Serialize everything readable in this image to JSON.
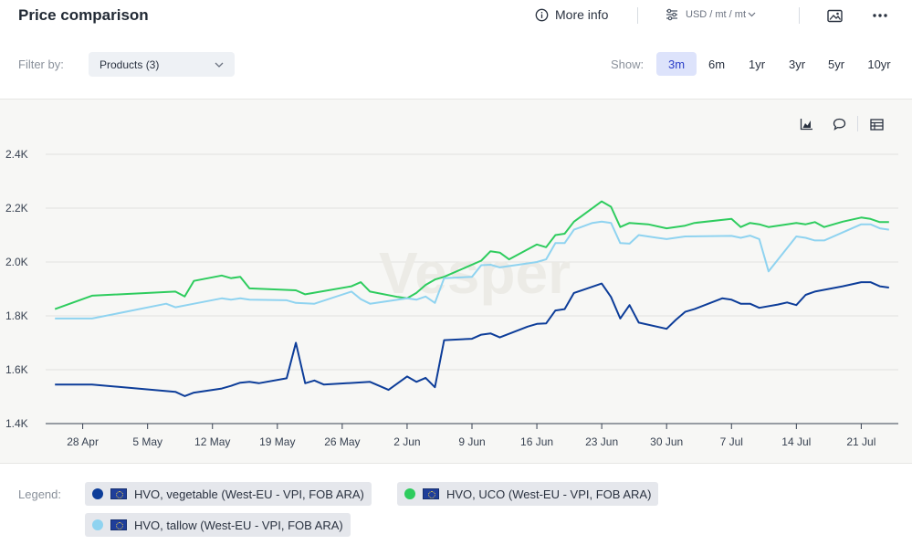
{
  "header": {
    "title": "Price comparison",
    "more_info": "More info",
    "units": "USD / mt / mt"
  },
  "filter": {
    "label": "Filter by:",
    "selected": "Products (3)"
  },
  "show": {
    "label": "Show:",
    "ranges": [
      "3m",
      "6m",
      "1yr",
      "3yr",
      "5yr",
      "10yr"
    ],
    "active": "3m"
  },
  "legend": {
    "label": "Legend:",
    "items": [
      {
        "name": "HVO, vegetable (West-EU - VPI, FOB ARA)",
        "color": "#0d3d99"
      },
      {
        "name": "HVO, UCO (West-EU - VPI, FOB ARA)",
        "color": "#2ecc5e"
      },
      {
        "name": "HVO, tallow (West-EU - VPI, FOB ARA)",
        "color": "#8fd3f0"
      }
    ]
  },
  "chart_data": {
    "type": "line",
    "watermark": "Vesper",
    "ylim": [
      1400,
      2400
    ],
    "yticks": [
      1400,
      1600,
      1800,
      2000,
      2200,
      2400
    ],
    "ytick_labels": [
      "1.4K",
      "1.6K",
      "1.8K",
      "2.0K",
      "2.2K",
      "2.4K"
    ],
    "xlim": [
      "2024-04-24",
      "2024-07-25"
    ],
    "xticks": [
      "2024-04-28",
      "2024-05-05",
      "2024-05-12",
      "2024-05-19",
      "2024-05-26",
      "2024-06-02",
      "2024-06-09",
      "2024-06-16",
      "2024-06-23",
      "2024-06-30",
      "2024-07-07",
      "2024-07-14",
      "2024-07-21"
    ],
    "xtick_labels": [
      "28 Apr",
      "5 May",
      "12 May",
      "19 May",
      "26 May",
      "2 Jun",
      "9 Jun",
      "16 Jun",
      "23 Jun",
      "30 Jun",
      "7 Jul",
      "14 Jul",
      "21 Jul"
    ],
    "grid": "horizontal",
    "series": [
      {
        "name": "HVO, UCO (West-EU - VPI, FOB ARA)",
        "color": "#2ecc5e",
        "points": [
          [
            "2024-04-25",
            1825
          ],
          [
            "2024-04-29",
            1875
          ],
          [
            "2024-05-08",
            1890
          ],
          [
            "2024-05-09",
            1872
          ],
          [
            "2024-05-10",
            1930
          ],
          [
            "2024-05-13",
            1950
          ],
          [
            "2024-05-14",
            1940
          ],
          [
            "2024-05-15",
            1945
          ],
          [
            "2024-05-16",
            1902
          ],
          [
            "2024-05-21",
            1895
          ],
          [
            "2024-05-22",
            1880
          ],
          [
            "2024-05-27",
            1910
          ],
          [
            "2024-05-28",
            1925
          ],
          [
            "2024-05-29",
            1890
          ],
          [
            "2024-06-01",
            1870
          ],
          [
            "2024-06-02",
            1865
          ],
          [
            "2024-06-03",
            1885
          ],
          [
            "2024-06-04",
            1915
          ],
          [
            "2024-06-05",
            1935
          ],
          [
            "2024-06-06",
            1945
          ],
          [
            "2024-06-10",
            2005
          ],
          [
            "2024-06-11",
            2040
          ],
          [
            "2024-06-12",
            2035
          ],
          [
            "2024-06-13",
            2010
          ],
          [
            "2024-06-16",
            2065
          ],
          [
            "2024-06-17",
            2055
          ],
          [
            "2024-06-18",
            2100
          ],
          [
            "2024-06-19",
            2105
          ],
          [
            "2024-06-20",
            2150
          ],
          [
            "2024-06-23",
            2225
          ],
          [
            "2024-06-24",
            2205
          ],
          [
            "2024-06-25",
            2130
          ],
          [
            "2024-06-26",
            2145
          ],
          [
            "2024-06-28",
            2140
          ],
          [
            "2024-06-30",
            2125
          ],
          [
            "2024-07-02",
            2135
          ],
          [
            "2024-07-03",
            2145
          ],
          [
            "2024-07-07",
            2160
          ],
          [
            "2024-07-08",
            2130
          ],
          [
            "2024-07-09",
            2145
          ],
          [
            "2024-07-10",
            2140
          ],
          [
            "2024-07-11",
            2130
          ],
          [
            "2024-07-13",
            2140
          ],
          [
            "2024-07-14",
            2145
          ],
          [
            "2024-07-15",
            2140
          ],
          [
            "2024-07-16",
            2148
          ],
          [
            "2024-07-17",
            2130
          ],
          [
            "2024-07-19",
            2150
          ],
          [
            "2024-07-21",
            2165
          ],
          [
            "2024-07-22",
            2160
          ],
          [
            "2024-07-23",
            2148
          ],
          [
            "2024-07-24",
            2148
          ]
        ]
      },
      {
        "name": "HVO, tallow (West-EU - VPI, FOB ARA)",
        "color": "#8fd3f0",
        "points": [
          [
            "2024-04-25",
            1790
          ],
          [
            "2024-04-29",
            1790
          ],
          [
            "2024-05-07",
            1845
          ],
          [
            "2024-05-08",
            1832
          ],
          [
            "2024-05-10",
            1845
          ],
          [
            "2024-05-13",
            1865
          ],
          [
            "2024-05-14",
            1860
          ],
          [
            "2024-05-15",
            1865
          ],
          [
            "2024-05-16",
            1860
          ],
          [
            "2024-05-20",
            1858
          ],
          [
            "2024-05-21",
            1848
          ],
          [
            "2024-05-23",
            1845
          ],
          [
            "2024-05-27",
            1890
          ],
          [
            "2024-05-28",
            1862
          ],
          [
            "2024-05-29",
            1845
          ],
          [
            "2024-06-01",
            1860
          ],
          [
            "2024-06-02",
            1865
          ],
          [
            "2024-06-03",
            1860
          ],
          [
            "2024-06-04",
            1872
          ],
          [
            "2024-06-05",
            1848
          ],
          [
            "2024-06-06",
            1940
          ],
          [
            "2024-06-09",
            1945
          ],
          [
            "2024-06-10",
            1988
          ],
          [
            "2024-06-11",
            1990
          ],
          [
            "2024-06-12",
            1980
          ],
          [
            "2024-06-14",
            1990
          ],
          [
            "2024-06-16",
            2000
          ],
          [
            "2024-06-17",
            2010
          ],
          [
            "2024-06-18",
            2070
          ],
          [
            "2024-06-19",
            2070
          ],
          [
            "2024-06-20",
            2120
          ],
          [
            "2024-06-22",
            2145
          ],
          [
            "2024-06-23",
            2150
          ],
          [
            "2024-06-24",
            2145
          ],
          [
            "2024-06-25",
            2070
          ],
          [
            "2024-06-26",
            2068
          ],
          [
            "2024-06-27",
            2100
          ],
          [
            "2024-06-29",
            2090
          ],
          [
            "2024-06-30",
            2085
          ],
          [
            "2024-07-02",
            2095
          ],
          [
            "2024-07-07",
            2097
          ],
          [
            "2024-07-08",
            2090
          ],
          [
            "2024-07-09",
            2098
          ],
          [
            "2024-07-10",
            2085
          ],
          [
            "2024-07-11",
            1965
          ],
          [
            "2024-07-14",
            2095
          ],
          [
            "2024-07-15",
            2090
          ],
          [
            "2024-07-16",
            2080
          ],
          [
            "2024-07-17",
            2080
          ],
          [
            "2024-07-19",
            2110
          ],
          [
            "2024-07-21",
            2140
          ],
          [
            "2024-07-22",
            2140
          ],
          [
            "2024-07-23",
            2125
          ],
          [
            "2024-07-24",
            2120
          ]
        ]
      },
      {
        "name": "HVO, vegetable (West-EU - VPI, FOB ARA)",
        "color": "#0d3d99",
        "points": [
          [
            "2024-04-25",
            1545
          ],
          [
            "2024-04-29",
            1545
          ],
          [
            "2024-05-08",
            1518
          ],
          [
            "2024-05-09",
            1502
          ],
          [
            "2024-05-10",
            1515
          ],
          [
            "2024-05-13",
            1530
          ],
          [
            "2024-05-14",
            1540
          ],
          [
            "2024-05-15",
            1552
          ],
          [
            "2024-05-16",
            1555
          ],
          [
            "2024-05-17",
            1550
          ],
          [
            "2024-05-20",
            1568
          ],
          [
            "2024-05-21",
            1700
          ],
          [
            "2024-05-22",
            1550
          ],
          [
            "2024-05-23",
            1560
          ],
          [
            "2024-05-24",
            1545
          ],
          [
            "2024-05-29",
            1555
          ],
          [
            "2024-05-30",
            1540
          ],
          [
            "2024-05-31",
            1525
          ],
          [
            "2024-06-02",
            1575
          ],
          [
            "2024-06-03",
            1555
          ],
          [
            "2024-06-04",
            1570
          ],
          [
            "2024-06-05",
            1535
          ],
          [
            "2024-06-06",
            1710
          ],
          [
            "2024-06-09",
            1715
          ],
          [
            "2024-06-10",
            1730
          ],
          [
            "2024-06-11",
            1735
          ],
          [
            "2024-06-12",
            1720
          ],
          [
            "2024-06-15",
            1760
          ],
          [
            "2024-06-16",
            1770
          ],
          [
            "2024-06-17",
            1772
          ],
          [
            "2024-06-18",
            1820
          ],
          [
            "2024-06-19",
            1825
          ],
          [
            "2024-06-20",
            1885
          ],
          [
            "2024-06-23",
            1920
          ],
          [
            "2024-06-24",
            1870
          ],
          [
            "2024-06-25",
            1790
          ],
          [
            "2024-06-26",
            1840
          ],
          [
            "2024-06-27",
            1775
          ],
          [
            "2024-06-30",
            1752
          ],
          [
            "2024-07-01",
            1785
          ],
          [
            "2024-07-02",
            1815
          ],
          [
            "2024-07-03",
            1825
          ],
          [
            "2024-07-06",
            1865
          ],
          [
            "2024-07-07",
            1860
          ],
          [
            "2024-07-08",
            1845
          ],
          [
            "2024-07-09",
            1845
          ],
          [
            "2024-07-10",
            1830
          ],
          [
            "2024-07-12",
            1842
          ],
          [
            "2024-07-13",
            1850
          ],
          [
            "2024-07-14",
            1840
          ],
          [
            "2024-07-15",
            1878
          ],
          [
            "2024-07-16",
            1890
          ],
          [
            "2024-07-19",
            1910
          ],
          [
            "2024-07-21",
            1925
          ],
          [
            "2024-07-22",
            1925
          ],
          [
            "2024-07-23",
            1910
          ],
          [
            "2024-07-24",
            1905
          ]
        ]
      }
    ]
  }
}
